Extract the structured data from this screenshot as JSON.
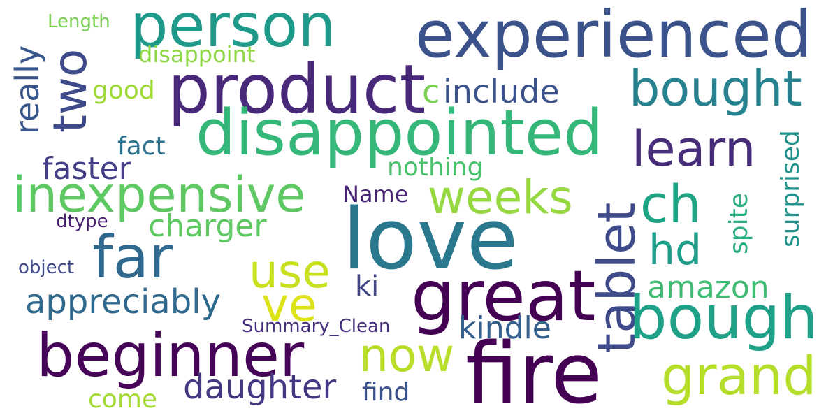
{
  "words": {
    "person": {
      "text": "person",
      "color": "#1f9a8a"
    },
    "experienced": {
      "text": "experienced",
      "color": "#3b528b"
    },
    "product": {
      "text": "product",
      "color": "#482878"
    },
    "disappointed": {
      "text": "disappointed",
      "color": "#35b779"
    },
    "bought": {
      "text": "bought",
      "color": "#26828e"
    },
    "learn": {
      "text": "learn",
      "color": "#472c7a"
    },
    "two": {
      "text": "two",
      "color": "#3e4a89"
    },
    "really": {
      "text": "really",
      "color": "#39568c"
    },
    "length": {
      "text": "Length",
      "color": "#7ad151"
    },
    "disappoint": {
      "text": "disappoint",
      "color": "#8fd744"
    },
    "good": {
      "text": "good",
      "color": "#a0da39"
    },
    "c": {
      "text": "c",
      "color": "#7ad151"
    },
    "include": {
      "text": "include",
      "color": "#3b528b"
    },
    "fact": {
      "text": "fact",
      "color": "#2c728e"
    },
    "faster": {
      "text": "faster",
      "color": "#433e85"
    },
    "nothing": {
      "text": "nothing",
      "color": "#4ac16d"
    },
    "inexpensive": {
      "text": "inexpensive",
      "color": "#5ec962"
    },
    "name": {
      "text": "Name",
      "color": "#482475"
    },
    "weeks": {
      "text": "weeks",
      "color": "#95d840"
    },
    "tablet": {
      "text": "tablet",
      "color": "#3e4a89"
    },
    "ch": {
      "text": "ch",
      "color": "#20a486"
    },
    "surprised": {
      "text": "surprised",
      "color": "#21918c"
    },
    "spite": {
      "text": "spite",
      "color": "#29af7f"
    },
    "dtype": {
      "text": "dtype",
      "color": "#481f70"
    },
    "charger": {
      "text": "charger",
      "color": "#5ec962"
    },
    "love": {
      "text": "love",
      "color": "#2a788e"
    },
    "far": {
      "text": "far",
      "color": "#31688e"
    },
    "hd": {
      "text": "hd",
      "color": "#1f9e89"
    },
    "use": {
      "text": "use",
      "color": "#c8e020"
    },
    "object": {
      "text": "object",
      "color": "#3e4989"
    },
    "great": {
      "text": "great",
      "color": "#440154"
    },
    "ki": {
      "text": "ki",
      "color": "#404688"
    },
    "amazon": {
      "text": "amazon",
      "color": "#3fbc73"
    },
    "appreciably": {
      "text": "appreciably",
      "color": "#30698e"
    },
    "ve": {
      "text": "ve",
      "color": "#dde318"
    },
    "bough": {
      "text": "bough",
      "color": "#1fa188"
    },
    "summary_clean": {
      "text": "Summary_Clean",
      "color": "#46307e"
    },
    "kindle": {
      "text": "kindle",
      "color": "#355f8d"
    },
    "beginner": {
      "text": "beginner",
      "color": "#450457"
    },
    "now": {
      "text": "now",
      "color": "#b8de29"
    },
    "fire": {
      "text": "fire",
      "color": "#440154"
    },
    "grand": {
      "text": "grand",
      "color": "#b5de2b"
    },
    "daughter": {
      "text": "daughter",
      "color": "#453781"
    },
    "find": {
      "text": "find",
      "color": "#3b528b"
    },
    "come": {
      "text": "come",
      "color": "#a5db36"
    }
  }
}
